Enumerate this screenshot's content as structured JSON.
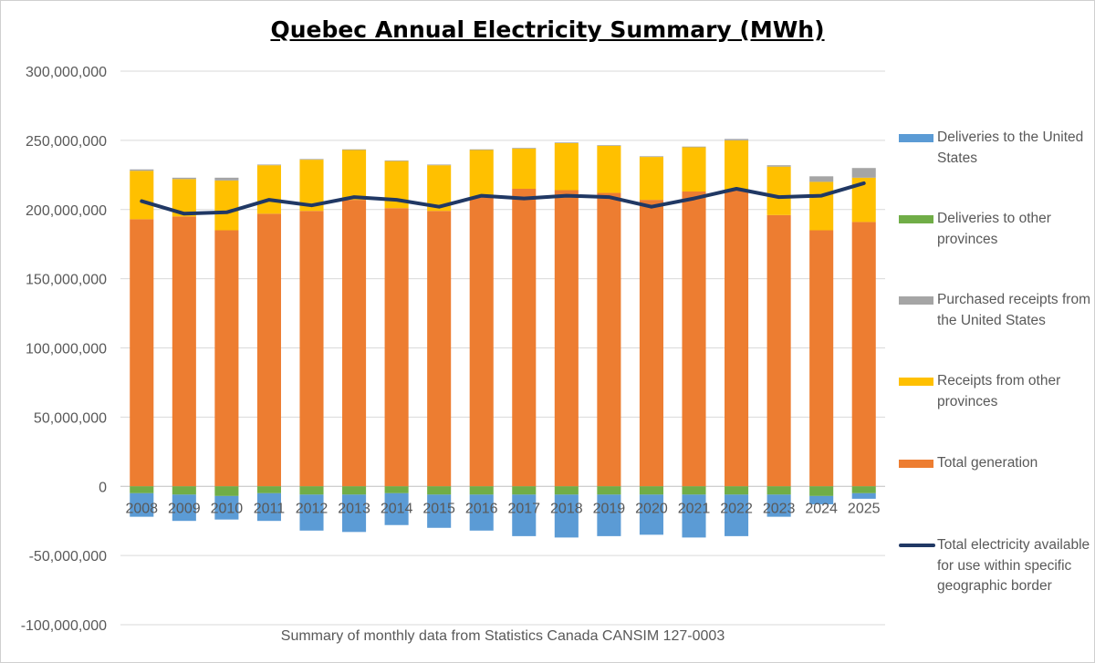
{
  "chart_data": {
    "type": "bar",
    "title": "Quebec Annual Electricity Summary (MWh)",
    "xlabel": "Summary of monthly data from Statistics Canada CANSIM 127-0003",
    "ylabel": "",
    "ylim": [
      -100000000,
      300000000
    ],
    "yticks": [
      300000000,
      250000000,
      200000000,
      150000000,
      100000000,
      50000000,
      0,
      -50000000,
      -100000000
    ],
    "ytick_labels": [
      "300,000,000",
      "250,000,000",
      "200,000,000",
      "150,000,000",
      "100,000,000",
      "50,000,000",
      "0",
      "-50,000,000",
      "-100,000,000"
    ],
    "grid": true,
    "legend_position": "right",
    "stacked": true,
    "categories": [
      "2008",
      "2009",
      "2010",
      "2011",
      "2012",
      "2013",
      "2014",
      "2015",
      "2016",
      "2017",
      "2018",
      "2019",
      "2020",
      "2021",
      "2022",
      "2023",
      "2024",
      "2025"
    ],
    "series": [
      {
        "name": "Deliveries to the United States",
        "kind": "bar",
        "color": "#5b9bd5",
        "values": [
          -17000000,
          -19000000,
          -17000000,
          -20000000,
          -26000000,
          -27000000,
          -23000000,
          -24000000,
          -26000000,
          -30000000,
          -31000000,
          -30000000,
          -29000000,
          -31000000,
          -30000000,
          -16000000,
          -6000000,
          -4000000
        ]
      },
      {
        "name": "Deliveries to other provinces",
        "kind": "bar",
        "color": "#70ad47",
        "values": [
          -5000000,
          -6000000,
          -7000000,
          -5000000,
          -6000000,
          -6000000,
          -5000000,
          -6000000,
          -6000000,
          -6000000,
          -6000000,
          -6000000,
          -6000000,
          -6000000,
          -6000000,
          -6000000,
          -7000000,
          -5000000
        ]
      },
      {
        "name": "Purchased receipts from the United States",
        "kind": "bar",
        "color": "#a5a5a5",
        "values": [
          1000000,
          1000000,
          2000000,
          500000,
          500000,
          500000,
          500000,
          500000,
          500000,
          500000,
          500000,
          500000,
          500000,
          500000,
          1000000,
          1000000,
          4000000,
          7000000
        ]
      },
      {
        "name": "Receipts from other provinces",
        "kind": "bar",
        "color": "#ffc000",
        "values": [
          35000000,
          27000000,
          36000000,
          35000000,
          37000000,
          36000000,
          34000000,
          33000000,
          34000000,
          29000000,
          34000000,
          34000000,
          31000000,
          32000000,
          36000000,
          35000000,
          35000000,
          32000000
        ]
      },
      {
        "name": "Total generation",
        "kind": "bar",
        "color": "#ed7d31",
        "values": [
          193000000,
          195000000,
          185000000,
          197000000,
          199000000,
          207000000,
          201000000,
          199000000,
          209000000,
          215000000,
          214000000,
          212000000,
          207000000,
          213000000,
          214000000,
          196000000,
          185000000,
          191000000
        ]
      },
      {
        "name": "Total electricity available for use within specific geographic border",
        "kind": "line",
        "color": "#203864",
        "values": [
          206000000,
          197000000,
          198000000,
          207000000,
          203000000,
          209000000,
          207000000,
          202000000,
          210000000,
          208000000,
          210000000,
          209000000,
          202000000,
          208000000,
          215000000,
          209000000,
          210000000,
          219000000
        ]
      }
    ]
  }
}
